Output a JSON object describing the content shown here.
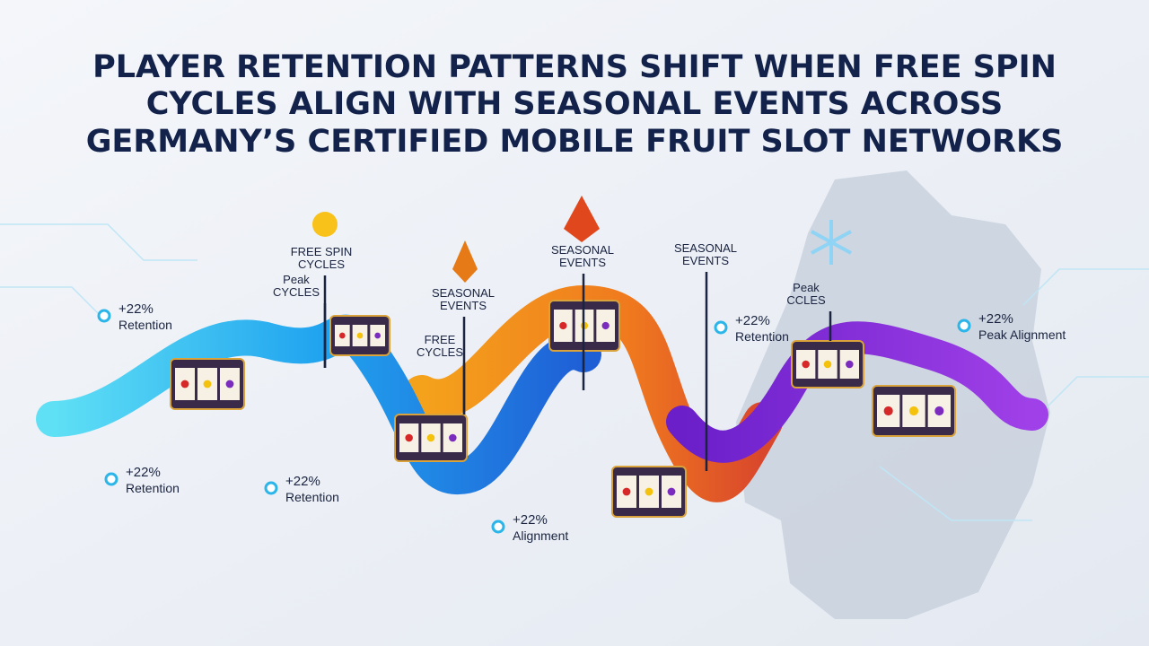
{
  "title": [
    "PLAYER RETENTION PATTERNS SHIFT WHEN FREE SPIN",
    "CYCLES ALIGN WITH SEASONAL EVENTS ACROSS",
    "GERMANY’S CERTIFIED MOBILE FRUIT SLOT NETWORKS"
  ],
  "labels": [
    {
      "lines": [
        "FREE SPIN",
        "CYCLES"
      ]
    },
    {
      "lines": [
        "Peak",
        "CYCLES"
      ]
    },
    {
      "lines": [
        "SEASONAL",
        "EVENTS"
      ]
    },
    {
      "lines": [
        "FREE",
        "CYCLES"
      ]
    },
    {
      "lines": [
        "SEASONAL",
        "EVENTS"
      ]
    },
    {
      "lines": [
        "SEASONAL",
        "EVENTS"
      ]
    },
    {
      "lines": [
        "Peak",
        "CCLES"
      ]
    }
  ],
  "stats": [
    {
      "value": "+22%",
      "label": "Retention"
    },
    {
      "value": "+22%",
      "label": "Retention"
    },
    {
      "value": "+22%",
      "label": "Retention"
    },
    {
      "value": "+22%",
      "label": "Alignment"
    },
    {
      "value": "+22%",
      "label": "Retention"
    },
    {
      "value": "+22%",
      "label": "Peak Alignment"
    }
  ]
}
